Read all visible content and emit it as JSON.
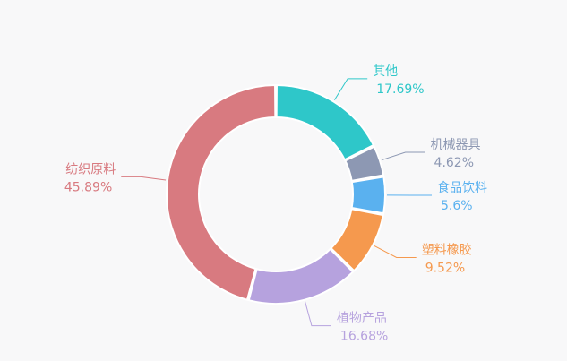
{
  "chart_data": {
    "type": "pie",
    "variant": "donut",
    "title": "",
    "legend": "none",
    "series": [
      {
        "slices": [
          {
            "label": "其他",
            "percent_text": "17.69%",
            "value": 17.69,
            "color": "#2ec7c9"
          },
          {
            "label": "机械器具",
            "percent_text": "4.62%",
            "value": 4.62,
            "color": "#8d98b3"
          },
          {
            "label": "食品饮料",
            "percent_text": "5.6%",
            "value": 5.6,
            "color": "#5ab1ef"
          },
          {
            "label": "塑料橡胶",
            "percent_text": "9.52%",
            "value": 9.52,
            "color": "#f5994e"
          },
          {
            "label": "植物产品",
            "percent_text": "16.68%",
            "value": 16.68,
            "color": "#b6a2de"
          },
          {
            "label": "纺织原料",
            "percent_text": "45.89%",
            "value": 45.89,
            "color": "#d87a80"
          }
        ]
      }
    ]
  }
}
